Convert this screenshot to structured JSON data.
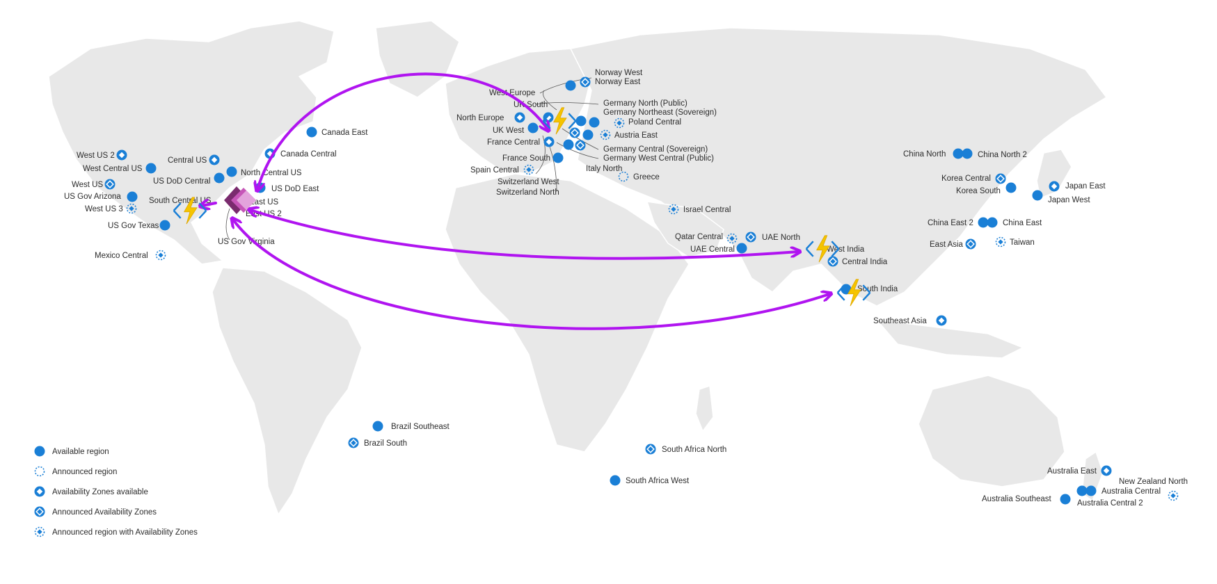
{
  "colors": {
    "region_blue": "#1a7fd6",
    "land": "#e8e8e8",
    "arc_purple": "#b014f0",
    "bolt_yellow": "#f5c400",
    "powerapps_pink": "#c656b8"
  },
  "legend": [
    {
      "type": "available",
      "label": "Available region"
    },
    {
      "type": "announced",
      "label": "Announced region"
    },
    {
      "type": "az",
      "label": "Availability Zones available"
    },
    {
      "type": "announced-az",
      "label": "Announced Availability Zones"
    },
    {
      "type": "announced-region-az",
      "label": "Announced region with Availability Zones"
    }
  ],
  "regions": {
    "west_us_2": {
      "label": "West US 2",
      "type": "az"
    },
    "west_central_us": {
      "label": "West Central US",
      "type": "available"
    },
    "west_us": {
      "label": "West US",
      "type": "announced-az"
    },
    "us_gov_arizona": {
      "label": "US Gov Arizona",
      "type": "available"
    },
    "west_us_3": {
      "label": "West US 3",
      "type": "announced-region-az"
    },
    "us_gov_texas": {
      "label": "US Gov Texas",
      "type": "available"
    },
    "mexico_central": {
      "label": "Mexico Central",
      "type": "announced-region-az"
    },
    "central_us": {
      "label": "Central US",
      "type": "az"
    },
    "us_dod_central": {
      "label": "US DoD Central",
      "type": "available"
    },
    "south_central_us": {
      "label": "South Central US",
      "type": "az"
    },
    "north_central_us": {
      "label": "North Central US",
      "type": "available"
    },
    "us_dod_east": {
      "label": "US DoD East",
      "type": "available"
    },
    "east_us": {
      "label": "East US",
      "type": "az"
    },
    "east_us_2": {
      "label": "East US 2",
      "type": "az"
    },
    "us_gov_virginia": {
      "label": "US Gov Virginia",
      "type": "az"
    },
    "canada_east": {
      "label": "Canada East",
      "type": "available"
    },
    "canada_central": {
      "label": "Canada Central",
      "type": "az"
    },
    "brazil_southeast": {
      "label": "Brazil Southeast",
      "type": "available"
    },
    "brazil_south": {
      "label": "Brazil South",
      "type": "announced-az"
    },
    "norway_west": {
      "label": "Norway West",
      "type": "available"
    },
    "norway_east": {
      "label": "Norway East",
      "type": "announced-az"
    },
    "west_europe": {
      "label": "West Europe",
      "type": "az"
    },
    "uk_south": {
      "label": "UK South",
      "type": "az"
    },
    "north_europe": {
      "label": "North Europe",
      "type": "az"
    },
    "uk_west": {
      "label": "UK West",
      "type": "available"
    },
    "france_central": {
      "label": "France Central",
      "type": "az"
    },
    "france_south": {
      "label": "France South",
      "type": "available"
    },
    "spain_central": {
      "label": "Spain Central",
      "type": "announced-region-az"
    },
    "switzerland_west": {
      "label": "Switzerland West",
      "type": "available"
    },
    "switzerland_north": {
      "label": "Switzerland North",
      "type": "announced-az"
    },
    "germany_north": {
      "label": "Germany North (Public)",
      "type": "available"
    },
    "germany_northeast": {
      "label": "Germany Northeast (Sovereign)",
      "type": "available"
    },
    "poland_central": {
      "label": "Poland Central",
      "type": "announced-region-az"
    },
    "austria_east": {
      "label": "Austria East",
      "type": "announced-region-az"
    },
    "germany_central": {
      "label": "Germany Central (Sovereign)",
      "type": "available"
    },
    "germany_west_central": {
      "label": "Germany West Central (Public)",
      "type": "announced-az"
    },
    "italy_north": {
      "label": "Italy North",
      "type": "announced-region-az"
    },
    "greece": {
      "label": "Greece",
      "type": "announced"
    },
    "israel_central": {
      "label": "Israel Central",
      "type": "announced-region-az"
    },
    "qatar_central": {
      "label": "Qatar Central",
      "type": "announced-region-az"
    },
    "uae_north": {
      "label": "UAE North",
      "type": "announced-az"
    },
    "uae_central": {
      "label": "UAE Central",
      "type": "available"
    },
    "west_india": {
      "label": "West India",
      "type": "available"
    },
    "central_india": {
      "label": "Central India",
      "type": "announced-az"
    },
    "south_india": {
      "label": "South India",
      "type": "available"
    },
    "south_africa_north": {
      "label": "South Africa North",
      "type": "announced-az"
    },
    "south_africa_west": {
      "label": "South Africa West",
      "type": "available"
    },
    "china_north": {
      "label": "China North",
      "type": "available"
    },
    "china_north_2": {
      "label": "China North 2",
      "type": "available"
    },
    "korea_central": {
      "label": "Korea Central",
      "type": "announced-az"
    },
    "korea_south": {
      "label": "Korea South",
      "type": "available"
    },
    "japan_east": {
      "label": "Japan East",
      "type": "az"
    },
    "japan_west": {
      "label": "Japan West",
      "type": "available"
    },
    "china_east_2": {
      "label": "China East 2",
      "type": "available"
    },
    "china_east": {
      "label": "China East",
      "type": "available"
    },
    "east_asia": {
      "label": "East Asia",
      "type": "announced-az"
    },
    "taiwan": {
      "label": "Taiwan",
      "type": "announced-region-az"
    },
    "southeast_asia": {
      "label": "Southeast Asia",
      "type": "az"
    },
    "australia_east": {
      "label": "Australia East",
      "type": "az"
    },
    "new_zealand_north": {
      "label": "New Zealand North",
      "type": "announced-region-az"
    },
    "australia_central": {
      "label": "Australia Central",
      "type": "available"
    },
    "australia_southeast": {
      "label": "Australia Southeast",
      "type": "available"
    },
    "australia_central_2": {
      "label": "Australia Central 2",
      "type": "available"
    }
  },
  "icons": [
    "azure-functions-icon",
    "power-apps-icon",
    "bidirectional-arc-arrow"
  ]
}
